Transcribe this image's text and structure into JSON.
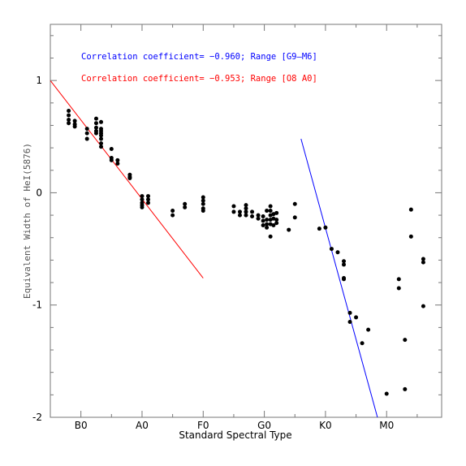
{
  "chart_data": {
    "type": "scatter",
    "xlabel": "Standard Spectral Type",
    "ylabel": "Equivalent Width of HeI(5876)",
    "x_ticks": [
      "B0",
      "A0",
      "F0",
      "G0",
      "K0",
      "M0"
    ],
    "x_tick_values": [
      0,
      10,
      20,
      30,
      40,
      50
    ],
    "xlim": [
      -5,
      59
    ],
    "y_ticks": [
      "1",
      "0",
      "-1",
      "-2"
    ],
    "y_tick_values": [
      1,
      0,
      -1,
      -2
    ],
    "ylim": [
      -2,
      1.5
    ],
    "grid": false,
    "annotations": [
      {
        "text": "Correlation coefficient= −0.960; Range [G9–M6]",
        "color": "#0000ff"
      },
      {
        "text": "Correlation coefficient= −0.953; Range [O8 A0]",
        "color": "#ff0000"
      }
    ],
    "fit_lines": [
      {
        "color": "#ff0000",
        "x": [
          -5,
          20
        ],
        "y": [
          1.0,
          -0.76
        ]
      },
      {
        "color": "#0000ff",
        "x": [
          36,
          48.5
        ],
        "y": [
          0.48,
          -2.0
        ]
      }
    ],
    "points": [
      [
        -2,
        0.73
      ],
      [
        -2,
        0.69
      ],
      [
        -2,
        0.65
      ],
      [
        -2,
        0.62
      ],
      [
        -1,
        0.64
      ],
      [
        -1,
        0.61
      ],
      [
        -1,
        0.59
      ],
      [
        1,
        0.57
      ],
      [
        1,
        0.53
      ],
      [
        1,
        0.48
      ],
      [
        2.5,
        0.66
      ],
      [
        2.5,
        0.62
      ],
      [
        2.5,
        0.58
      ],
      [
        2.5,
        0.55
      ],
      [
        2.5,
        0.53
      ],
      [
        3.3,
        0.63
      ],
      [
        3.3,
        0.57
      ],
      [
        3.3,
        0.55
      ],
      [
        3.3,
        0.53
      ],
      [
        3.3,
        0.51
      ],
      [
        3.3,
        0.48
      ],
      [
        3.3,
        0.44
      ],
      [
        3.3,
        0.41
      ],
      [
        5,
        0.39
      ],
      [
        5,
        0.31
      ],
      [
        5,
        0.29
      ],
      [
        6,
        0.29
      ],
      [
        6,
        0.26
      ],
      [
        8,
        0.16
      ],
      [
        8,
        0.14
      ],
      [
        8,
        0.13
      ],
      [
        10,
        -0.03
      ],
      [
        10,
        -0.06
      ],
      [
        10,
        -0.09
      ],
      [
        10,
        -0.11
      ],
      [
        10,
        -0.13
      ],
      [
        11,
        -0.03
      ],
      [
        11,
        -0.06
      ],
      [
        11,
        -0.09
      ],
      [
        15,
        -0.16
      ],
      [
        15,
        -0.2
      ],
      [
        17,
        -0.1
      ],
      [
        17,
        -0.13
      ],
      [
        20,
        -0.04
      ],
      [
        20,
        -0.07
      ],
      [
        20,
        -0.1
      ],
      [
        20,
        -0.14
      ],
      [
        20,
        -0.16
      ],
      [
        25,
        -0.12
      ],
      [
        25,
        -0.17
      ],
      [
        26,
        -0.17
      ],
      [
        26,
        -0.2
      ],
      [
        27,
        -0.11
      ],
      [
        27,
        -0.14
      ],
      [
        27,
        -0.17
      ],
      [
        27,
        -0.2
      ],
      [
        28,
        -0.17
      ],
      [
        28,
        -0.21
      ],
      [
        29,
        -0.2
      ],
      [
        29,
        -0.23
      ],
      [
        29.8,
        -0.21
      ],
      [
        29.8,
        -0.25
      ],
      [
        29.8,
        -0.29
      ],
      [
        30.4,
        -0.16
      ],
      [
        30.4,
        -0.24
      ],
      [
        30.4,
        -0.28
      ],
      [
        30.4,
        -0.31
      ],
      [
        31,
        -0.12
      ],
      [
        31,
        -0.16
      ],
      [
        31,
        -0.2
      ],
      [
        31,
        -0.24
      ],
      [
        31,
        -0.28
      ],
      [
        31,
        -0.39
      ],
      [
        31.5,
        -0.19
      ],
      [
        31.5,
        -0.23
      ],
      [
        31.5,
        -0.29
      ],
      [
        32,
        -0.18
      ],
      [
        32,
        -0.24
      ],
      [
        32,
        -0.27
      ],
      [
        34,
        -0.33
      ],
      [
        35,
        -0.1
      ],
      [
        35,
        -0.22
      ],
      [
        39,
        -0.32
      ],
      [
        40,
        -0.31
      ],
      [
        41,
        -0.5
      ],
      [
        42,
        -0.53
      ],
      [
        43,
        -0.61
      ],
      [
        43,
        -0.64
      ],
      [
        43,
        -0.76
      ],
      [
        43,
        -0.77
      ],
      [
        44,
        -1.07
      ],
      [
        44,
        -1.15
      ],
      [
        45,
        -1.11
      ],
      [
        46,
        -1.34
      ],
      [
        47,
        -1.22
      ],
      [
        50,
        -1.79
      ],
      [
        52,
        -0.77
      ],
      [
        52,
        -0.85
      ],
      [
        53,
        -1.31
      ],
      [
        53,
        -1.75
      ],
      [
        54,
        -0.15
      ],
      [
        54,
        -0.39
      ],
      [
        56,
        -0.59
      ],
      [
        56,
        -0.62
      ],
      [
        56,
        -1.01
      ]
    ]
  }
}
